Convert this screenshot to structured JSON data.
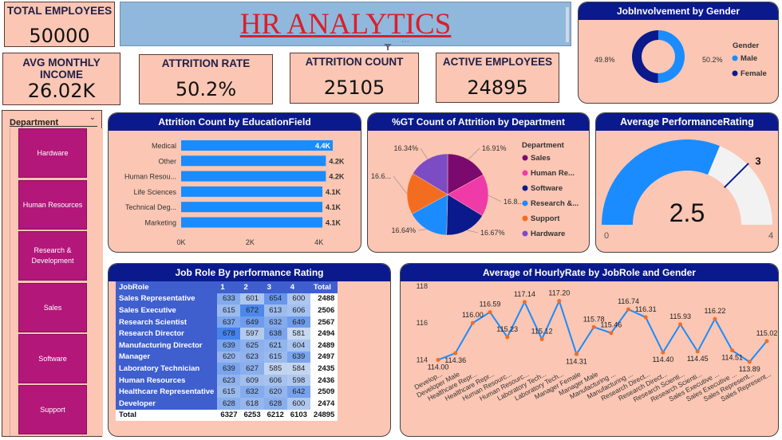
{
  "kpis": {
    "total_employees": {
      "label": "TOTAL EMPLOYEES",
      "value": "50000"
    },
    "avg_monthly_income": {
      "label": "AVG MONTHLY INCOME",
      "value": "26.02K"
    },
    "attrition_rate": {
      "label": "ATTRITION RATE",
      "value": "50.2%"
    },
    "attrition_count": {
      "label": "ATTRITION COUNT",
      "value": "25105"
    },
    "active_employees": {
      "label": "ACTIVE EMPLOYEES",
      "value": "24895"
    }
  },
  "header": {
    "title": "HR ANALYTICS"
  },
  "slicer": {
    "label": "Department",
    "items": [
      "Hardware",
      "Human Resources",
      "Research & Development",
      "Sales",
      "Software",
      "Support"
    ]
  },
  "colors": {
    "panel_bg": "#fbc6b3",
    "title_bar": "#0a1a8c",
    "bar": "#1a8cff",
    "slicer_btn": "#b3177a"
  },
  "chart_data": [
    {
      "type": "pie",
      "variant": "donut",
      "title": "JobInvolvement by Gender",
      "legend_title": "Gender",
      "legend_placement": "right",
      "slices": [
        {
          "name": "Male",
          "value": 50.2,
          "label": "50.2%",
          "color": "#1a8cff"
        },
        {
          "name": "Female",
          "value": 49.8,
          "label": "49.8%",
          "color": "#0a1a8c"
        }
      ]
    },
    {
      "type": "bar",
      "orientation": "horizontal",
      "title": "Attrition Count by EducationField",
      "categories": [
        "Medical",
        "Other",
        "Human Resou...",
        "Life Sciences",
        "Technical Deg...",
        "Marketing"
      ],
      "values": [
        4400,
        4200,
        4200,
        4100,
        4100,
        4100
      ],
      "value_labels": [
        "4.4K",
        "4.2K",
        "4.2K",
        "4.1K",
        "4.1K",
        "4.1K"
      ],
      "x_ticks": [
        "0K",
        "2K",
        "4K"
      ],
      "xlim": [
        0,
        4400
      ]
    },
    {
      "type": "pie",
      "title": "%GT Count of Attrition by Department",
      "legend_title": "Department",
      "legend_placement": "right",
      "slices": [
        {
          "name": "Sales",
          "value": 16.91,
          "label": "16.91%",
          "color": "#7a0a6e"
        },
        {
          "name": "Human Re...",
          "value": 16.8,
          "label": "16.8...",
          "color": "#f03aa8"
        },
        {
          "name": "Software",
          "value": 16.67,
          "label": "16.67%",
          "color": "#0a1a8c"
        },
        {
          "name": "Research &...",
          "value": 16.64,
          "label": "16.64%",
          "color": "#1a8cff"
        },
        {
          "name": "Support",
          "value": 16.6,
          "label": "16.6...",
          "color": "#f36d21"
        },
        {
          "name": "Hardware",
          "value": 16.34,
          "label": "16.34%",
          "color": "#7b4cc4"
        }
      ]
    },
    {
      "type": "gauge",
      "title": "Average PerformanceRating",
      "value": 2.5,
      "value_label": "2.5",
      "min": 0,
      "max": 4,
      "target": 3,
      "min_label": "0",
      "max_label": "4",
      "target_label": "3"
    },
    {
      "type": "table",
      "title": "Job Role By performance Rating",
      "columns": [
        "JobRole",
        "1",
        "2",
        "3",
        "4",
        "Total"
      ],
      "rows": [
        {
          "role": "Sales Representative",
          "values": [
            633,
            601,
            654,
            600
          ],
          "total": 2488
        },
        {
          "role": "Sales Executive",
          "values": [
            615,
            672,
            613,
            606
          ],
          "total": 2506
        },
        {
          "role": "Research Scientist",
          "values": [
            637,
            649,
            632,
            649
          ],
          "total": 2567
        },
        {
          "role": "Research Director",
          "values": [
            678,
            597,
            638,
            581
          ],
          "total": 2494
        },
        {
          "role": "Manufacturing Director",
          "values": [
            639,
            625,
            621,
            604
          ],
          "total": 2489
        },
        {
          "role": "Manager",
          "values": [
            620,
            623,
            615,
            639
          ],
          "total": 2497
        },
        {
          "role": "Laboratory Technician",
          "values": [
            639,
            627,
            585,
            584
          ],
          "total": 2435
        },
        {
          "role": "Human Resources",
          "values": [
            623,
            609,
            606,
            598
          ],
          "total": 2436
        },
        {
          "role": "Healthcare Representative",
          "values": [
            615,
            632,
            620,
            642
          ],
          "total": 2509
        },
        {
          "role": "Developer",
          "values": [
            628,
            618,
            628,
            600
          ],
          "total": 2474
        }
      ],
      "total_row": {
        "role": "Total",
        "values": [
          6327,
          6253,
          6212,
          6103
        ],
        "total": 24895
      }
    },
    {
      "type": "line",
      "title": "Average of HourlyRate by JobRole and Gender",
      "y_ticks": [
        "118",
        "116",
        "114"
      ],
      "ylim": [
        113.5,
        118
      ],
      "x_labels": [
        "Develop...",
        "Developer Male",
        "Healthcare Repr...",
        "Healthcare Repr...",
        "Human Resourc...",
        "Human Resourc...",
        "Laboratory Tech...",
        "Laboratory Tech...",
        "Manager Female",
        "Manager Male",
        "Manufacturing ...",
        "Manufacturing ...",
        "Research Direct...",
        "Research Direct...",
        "Research Scienti...",
        "Research Scienti...",
        "Sales Executive ...",
        "Sales Executive ...",
        "Sales Represent...",
        "Sales Represent..."
      ],
      "values": [
        114.0,
        114.36,
        116.0,
        116.59,
        115.23,
        117.14,
        115.12,
        117.2,
        114.31,
        115.78,
        115.46,
        116.74,
        116.31,
        114.4,
        115.93,
        114.45,
        116.22,
        114.51,
        113.89,
        115.02
      ],
      "value_labels": [
        "114.00",
        "114.36",
        "116.00",
        "116.59",
        "115.23",
        "117.14",
        "115.12",
        "117.20",
        "114.31",
        "115.78",
        "115.46",
        "116.74",
        "116.31",
        "114.40",
        "115.93",
        "114.45",
        "116.22",
        "114.51",
        "113.89",
        "115.02"
      ]
    }
  ]
}
